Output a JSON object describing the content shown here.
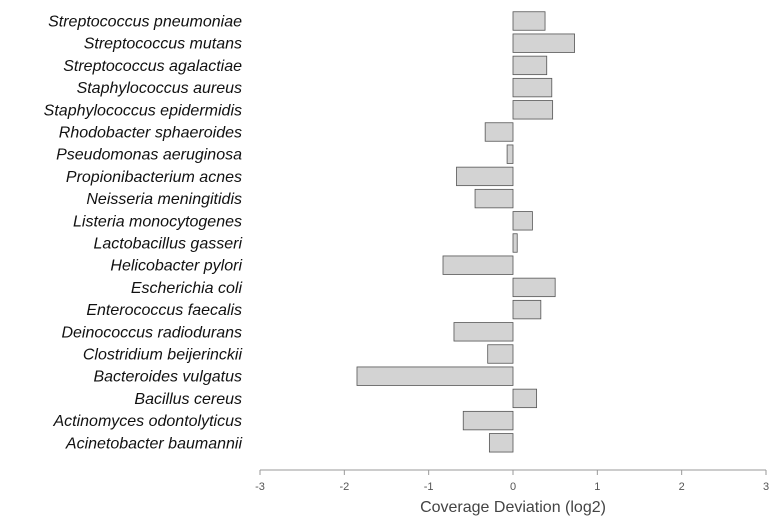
{
  "chart_data": {
    "type": "bar",
    "orientation": "horizontal",
    "categories": [
      "Streptococcus pneumoniae",
      "Streptococcus mutans",
      "Streptococcus agalactiae",
      "Staphylococcus aureus",
      "Staphylococcus epidermidis",
      "Rhodobacter sphaeroides",
      "Pseudomonas aeruginosa",
      "Propionibacterium acnes",
      "Neisseria meningitidis",
      "Listeria monocytogenes",
      "Lactobacillus gasseri",
      "Helicobacter pylori",
      "Escherichia coli",
      "Enterococcus faecalis",
      "Deinococcus radiodurans",
      "Clostridium beijerinckii",
      "Bacteroides vulgatus",
      "Bacillus cereus",
      "Actinomyces odontolyticus",
      "Acinetobacter baumannii"
    ],
    "values": [
      0.38,
      0.73,
      0.4,
      0.46,
      0.47,
      -0.33,
      -0.07,
      -0.67,
      -0.45,
      0.23,
      0.05,
      -0.83,
      0.5,
      0.33,
      -0.7,
      -0.3,
      -1.85,
      0.28,
      -0.59,
      -0.28
    ],
    "xlabel": "Coverage Deviation (log2)",
    "xlim": [
      -3,
      3
    ],
    "xticks": [
      "-3",
      "-2",
      "-1",
      "0",
      "1",
      "2",
      "3"
    ],
    "grid": false,
    "colors": {
      "bar_fill": "#d3d3d3",
      "bar_stroke": "#555555",
      "axis": "#999999"
    }
  }
}
